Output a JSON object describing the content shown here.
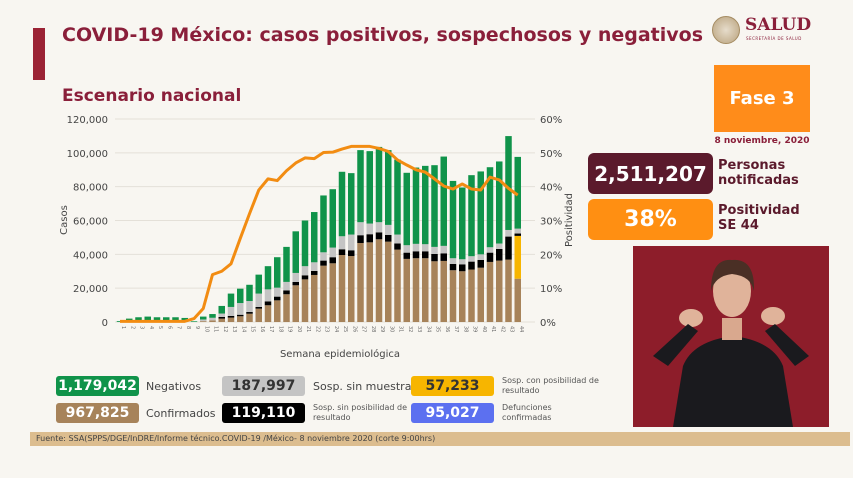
{
  "header": {
    "title": "COVID-19 México: casos positivos, sospechosos y negativos",
    "subtitle": "Escenario nacional",
    "logo_text": "SALUD",
    "logo_subtext": "SECRETARÍA DE SALUD"
  },
  "side": {
    "phase": "Fase 3",
    "date": "8 noviembre, 2020",
    "notified_value": "2,511,207",
    "notified_label_1": "Personas",
    "notified_label_2": "notificadas",
    "positivity_value": "38%",
    "positivity_label_1": "Positividad",
    "positivity_label_2": "SE 44"
  },
  "legend": [
    {
      "value": "1,179,042",
      "label": "Negativos",
      "color": "#10934a"
    },
    {
      "value": "187,997",
      "label": "Sosp. sin muestra",
      "color": "#c4c4c4"
    },
    {
      "value": "57,233",
      "label": "Sosp. con posibilidad de resultado",
      "color": "#f7b500"
    },
    {
      "value": "967,825",
      "label": "Confirmados",
      "color": "#a7835a"
    },
    {
      "value": "119,110",
      "label": "Sosp. sin posibilidad de resultado",
      "color": "#000000"
    },
    {
      "value": "95,027",
      "label": "Defunciones confirmadas",
      "color": "#5c70f0"
    }
  ],
  "footer": "Fuente: SSA(SPPS/DGE/InDRE/Informe técnico.COVID-19 /México- 8 noviembre 2020 (corte 9:00hrs)",
  "chart_data": {
    "type": "bar",
    "stacked": true,
    "xlabel": "Semana epidemiológica",
    "ylabel": "Casos",
    "y2label": "Positividad",
    "ylim": [
      0,
      120000
    ],
    "y2lim": [
      0,
      60
    ],
    "yticks": [
      "0",
      "20,000",
      "40,000",
      "60,000",
      "80,000",
      "100,000",
      "120,000"
    ],
    "y2ticks": [
      "0%",
      "10%",
      "20%",
      "30%",
      "40%",
      "50%",
      "60%"
    ],
    "grid": true,
    "categories": [
      "1",
      "2",
      "3",
      "4",
      "5",
      "6",
      "7",
      "8",
      "9",
      "10",
      "11",
      "12",
      "13",
      "14",
      "15",
      "16",
      "17",
      "18",
      "19",
      "20",
      "21",
      "22",
      "23",
      "24",
      "25",
      "26",
      "27",
      "28",
      "29",
      "30",
      "31",
      "32",
      "33",
      "34",
      "35",
      "36",
      "37",
      "38",
      "39",
      "40",
      "41",
      "42",
      "43",
      "44"
    ],
    "series": [
      {
        "name": "Confirmados",
        "color": "#a7835a",
        "values": [
          0,
          0,
          0,
          0,
          0,
          0,
          0,
          0,
          0,
          500,
          1000,
          2000,
          2600,
          3400,
          4900,
          7900,
          9900,
          12800,
          16400,
          21700,
          25200,
          27800,
          33300,
          34700,
          39600,
          39000,
          46700,
          47100,
          48900,
          47500,
          42800,
          37300,
          37700,
          37700,
          35900,
          36100,
          30600,
          30000,
          31000,
          32100,
          35500,
          36300,
          36900,
          25600
        ]
      },
      {
        "name": "Sosp. con posibilidad de resultado",
        "color": "#f7b500",
        "values": [
          0,
          0,
          0,
          0,
          0,
          0,
          0,
          0,
          0,
          0,
          0,
          0,
          0,
          0,
          0,
          0,
          0,
          0,
          0,
          0,
          0,
          0,
          0,
          0,
          0,
          0,
          0,
          0,
          0,
          0,
          0,
          0,
          0,
          0,
          0,
          0,
          0,
          0,
          0,
          0,
          0,
          0,
          0,
          25300
        ]
      },
      {
        "name": "Sosp. sin posibilidad de resultado",
        "color": "#000000",
        "values": [
          0,
          0,
          0,
          0,
          0,
          0,
          0,
          0,
          0,
          0,
          0,
          1000,
          1000,
          900,
          1000,
          1000,
          2300,
          2200,
          2300,
          2000,
          2400,
          2400,
          3000,
          3600,
          3400,
          3400,
          4600,
          4800,
          4100,
          4000,
          3600,
          3700,
          4100,
          4100,
          4300,
          4500,
          3700,
          4100,
          4700,
          4600,
          5500,
          6900,
          13600,
          1400
        ]
      },
      {
        "name": "Sosp. sin muestra",
        "color": "#c4c4c4",
        "values": [
          0,
          0,
          0,
          0,
          0,
          0,
          0,
          0,
          0,
          1000,
          1500,
          2000,
          5300,
          6900,
          6500,
          7900,
          7100,
          5300,
          5000,
          5300,
          5400,
          5100,
          4900,
          5700,
          7700,
          9300,
          7700,
          6300,
          6000,
          5900,
          5300,
          4400,
          4400,
          4200,
          4200,
          4400,
          3400,
          3000,
          3200,
          3300,
          3200,
          3200,
          3900,
          2900
        ]
      },
      {
        "name": "Negativos",
        "color": "#10934a",
        "values": [
          500,
          2000,
          2800,
          3200,
          2800,
          2800,
          2800,
          2400,
          400,
          1700,
          2200,
          4500,
          7900,
          8500,
          9600,
          11200,
          13700,
          18000,
          20700,
          24600,
          27000,
          29700,
          33600,
          34500,
          38100,
          36300,
          42600,
          42800,
          44500,
          44200,
          44300,
          42800,
          45100,
          46300,
          48300,
          52800,
          45700,
          42400,
          47900,
          49000,
          47300,
          48500,
          55500,
          42400
        ]
      }
    ],
    "line": {
      "name": "Positividad",
      "color": "#f28c12",
      "values": [
        0.2,
        0.2,
        0.2,
        0.2,
        0.2,
        0.2,
        0.2,
        0.2,
        1,
        4,
        14,
        15,
        17.2,
        24.7,
        32,
        39,
        42.3,
        41.8,
        44.7,
        47,
        48.5,
        48.3,
        50.1,
        50.2,
        51.1,
        51.9,
        51.9,
        51.9,
        51.3,
        50.4,
        47.9,
        46.4,
        45,
        44.3,
        42.3,
        40.2,
        39.3,
        40.8,
        39.3,
        39,
        42.8,
        42,
        39.5,
        37.5
      ]
    }
  }
}
